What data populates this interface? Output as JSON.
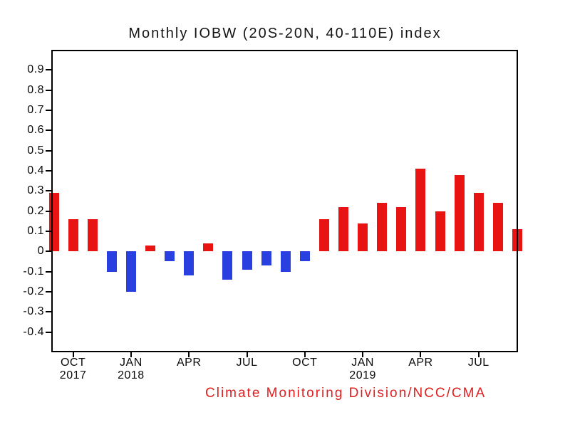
{
  "title": "Monthly IOBW (20S-20N, 40-110E) index",
  "footer": "Climate Monitoring Division/NCC/CMA",
  "colors": {
    "positive_bar": "#e81414",
    "negative_bar": "#2a3fe0",
    "footer_text": "#e01f1f",
    "axis": "#000000"
  },
  "chart_data": {
    "type": "bar",
    "title": "Monthly IOBW (20S-20N, 40-110E) index",
    "categories": [
      "Sep 2017",
      "Oct 2017",
      "Nov 2017",
      "Dec 2017",
      "Jan 2018",
      "Feb 2018",
      "Mar 2018",
      "Apr 2018",
      "May 2018",
      "Jun 2018",
      "Jul 2018",
      "Aug 2018",
      "Sep 2018",
      "Oct 2018",
      "Nov 2018",
      "Dec 2018",
      "Jan 2019",
      "Feb 2019",
      "Mar 2019",
      "Apr 2019",
      "May 2019",
      "Jun 2019",
      "Jul 2019",
      "Aug 2019",
      "Sep 2019"
    ],
    "values": [
      0.29,
      0.16,
      0.16,
      -0.1,
      -0.2,
      0.03,
      -0.05,
      -0.12,
      0.04,
      -0.14,
      -0.09,
      -0.07,
      -0.1,
      -0.05,
      0.16,
      0.22,
      0.14,
      0.24,
      0.22,
      0.41,
      0.2,
      0.38,
      0.29,
      0.24,
      0.11
    ],
    "bar_color_rule": "red if value >= 0, blue if value < 0",
    "ylim": [
      -0.5,
      1.0
    ],
    "yticks": [
      0.9,
      0.8,
      0.7,
      0.6,
      0.5,
      0.4,
      0.3,
      0.2,
      0.1,
      0,
      -0.1,
      -0.2,
      -0.3,
      -0.4
    ],
    "xticks": [
      {
        "label": "OCT",
        "year": "2017",
        "month_index": 1
      },
      {
        "label": "JAN",
        "year": "2018",
        "month_index": 4
      },
      {
        "label": "APR",
        "year": "",
        "month_index": 7
      },
      {
        "label": "JUL",
        "year": "",
        "month_index": 10
      },
      {
        "label": "OCT",
        "year": "",
        "month_index": 13
      },
      {
        "label": "JAN",
        "year": "2019",
        "month_index": 16
      },
      {
        "label": "APR",
        "year": "",
        "month_index": 19
      },
      {
        "label": "JUL",
        "year": "",
        "month_index": 22
      }
    ],
    "grid": false,
    "legend": false,
    "xlabel": "",
    "ylabel": ""
  }
}
